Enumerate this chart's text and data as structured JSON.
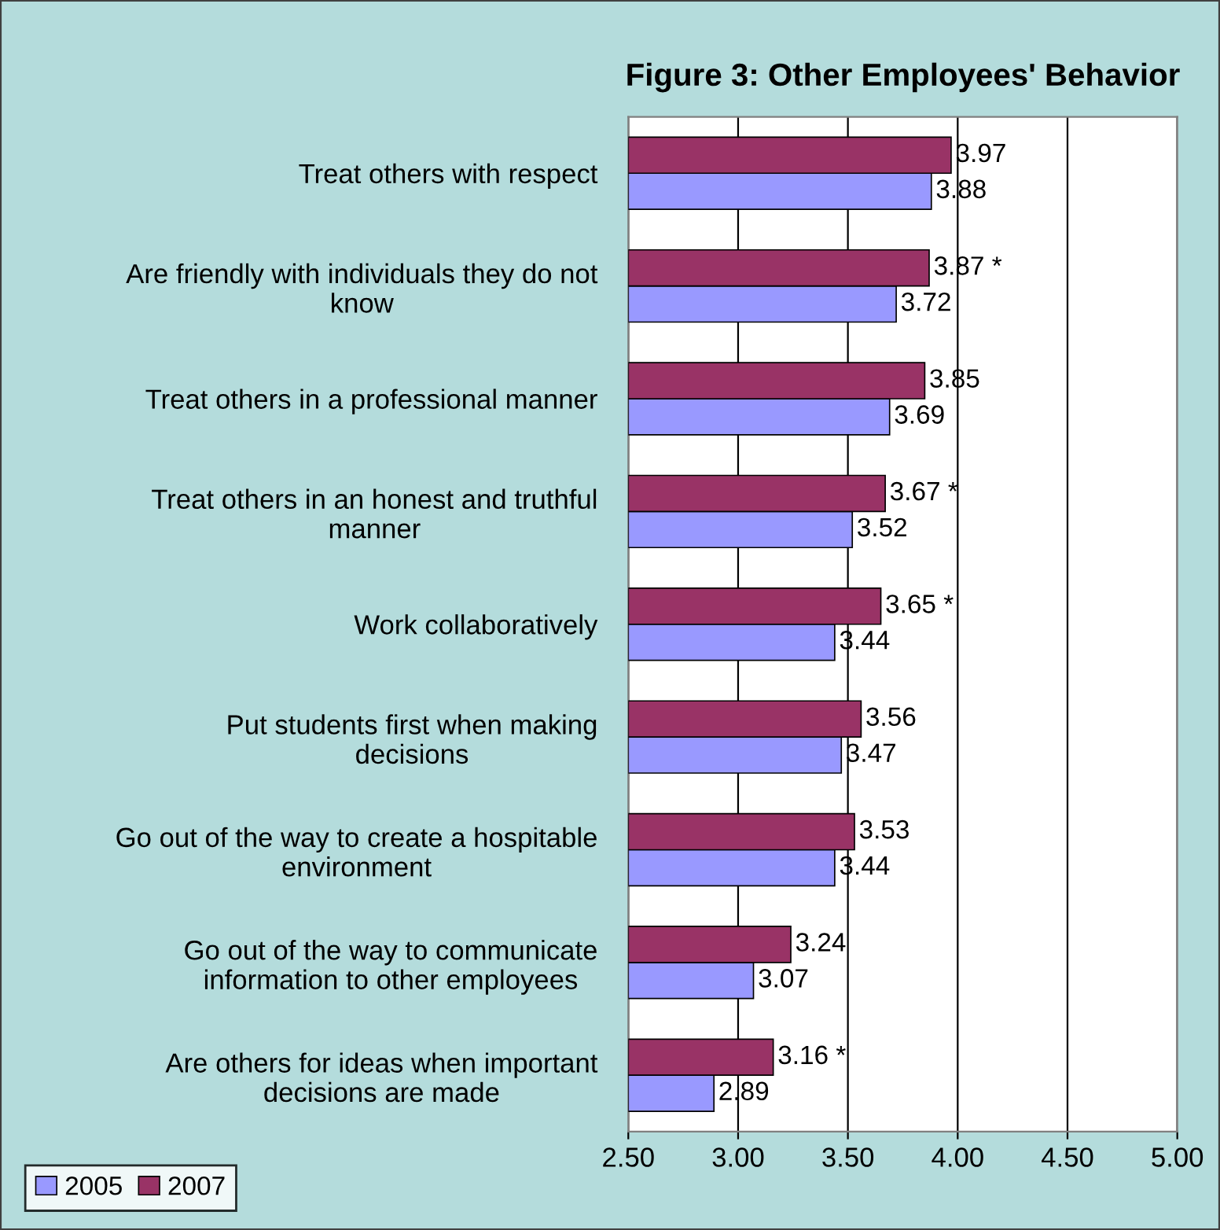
{
  "chart_data": {
    "type": "bar",
    "orientation": "horizontal",
    "title": "Figure 3: Other Employees' Behavior",
    "categories": [
      "Treat others with respect",
      "Are friendly with individuals they do not\nknow",
      "Treat others in a professional manner",
      "Treat others in an honest and truthful\nmanner",
      "Work collaboratively",
      "Put students first when making\ndecisions",
      "Go out of the way to create a hospitable\nenvironment",
      "Go out of the way to communicate\ninformation to other employees",
      "Are others for ideas when important\ndecisions are made"
    ],
    "series": [
      {
        "name": "2005",
        "color": "#9999ff",
        "values": [
          3.88,
          3.72,
          3.69,
          3.52,
          3.44,
          3.47,
          3.44,
          3.07,
          2.89
        ],
        "value_labels": [
          "3.88",
          "3.72",
          "3.69",
          "3.52",
          "3.44",
          "3.47",
          "3.44",
          "3.07",
          "2.89"
        ]
      },
      {
        "name": "2007",
        "color": "#993366",
        "values": [
          3.97,
          3.87,
          3.85,
          3.67,
          3.65,
          3.56,
          3.53,
          3.24,
          3.16
        ],
        "value_labels": [
          "3.97",
          "3.87 *",
          "3.85",
          "3.67 *",
          "3.65 *",
          "3.56",
          "3.53",
          "3.24",
          "3.16 *"
        ]
      }
    ],
    "xlim": [
      2.5,
      5.0
    ],
    "xticks": [
      {
        "value": 2.5,
        "label": "2.50"
      },
      {
        "value": 3.0,
        "label": "3.00"
      },
      {
        "value": 3.5,
        "label": "3.50"
      },
      {
        "value": 4.0,
        "label": "4.00"
      },
      {
        "value": 4.5,
        "label": "4.50"
      },
      {
        "value": 5.0,
        "label": "5.00"
      }
    ],
    "grid": "x",
    "legend": "bottom left"
  }
}
